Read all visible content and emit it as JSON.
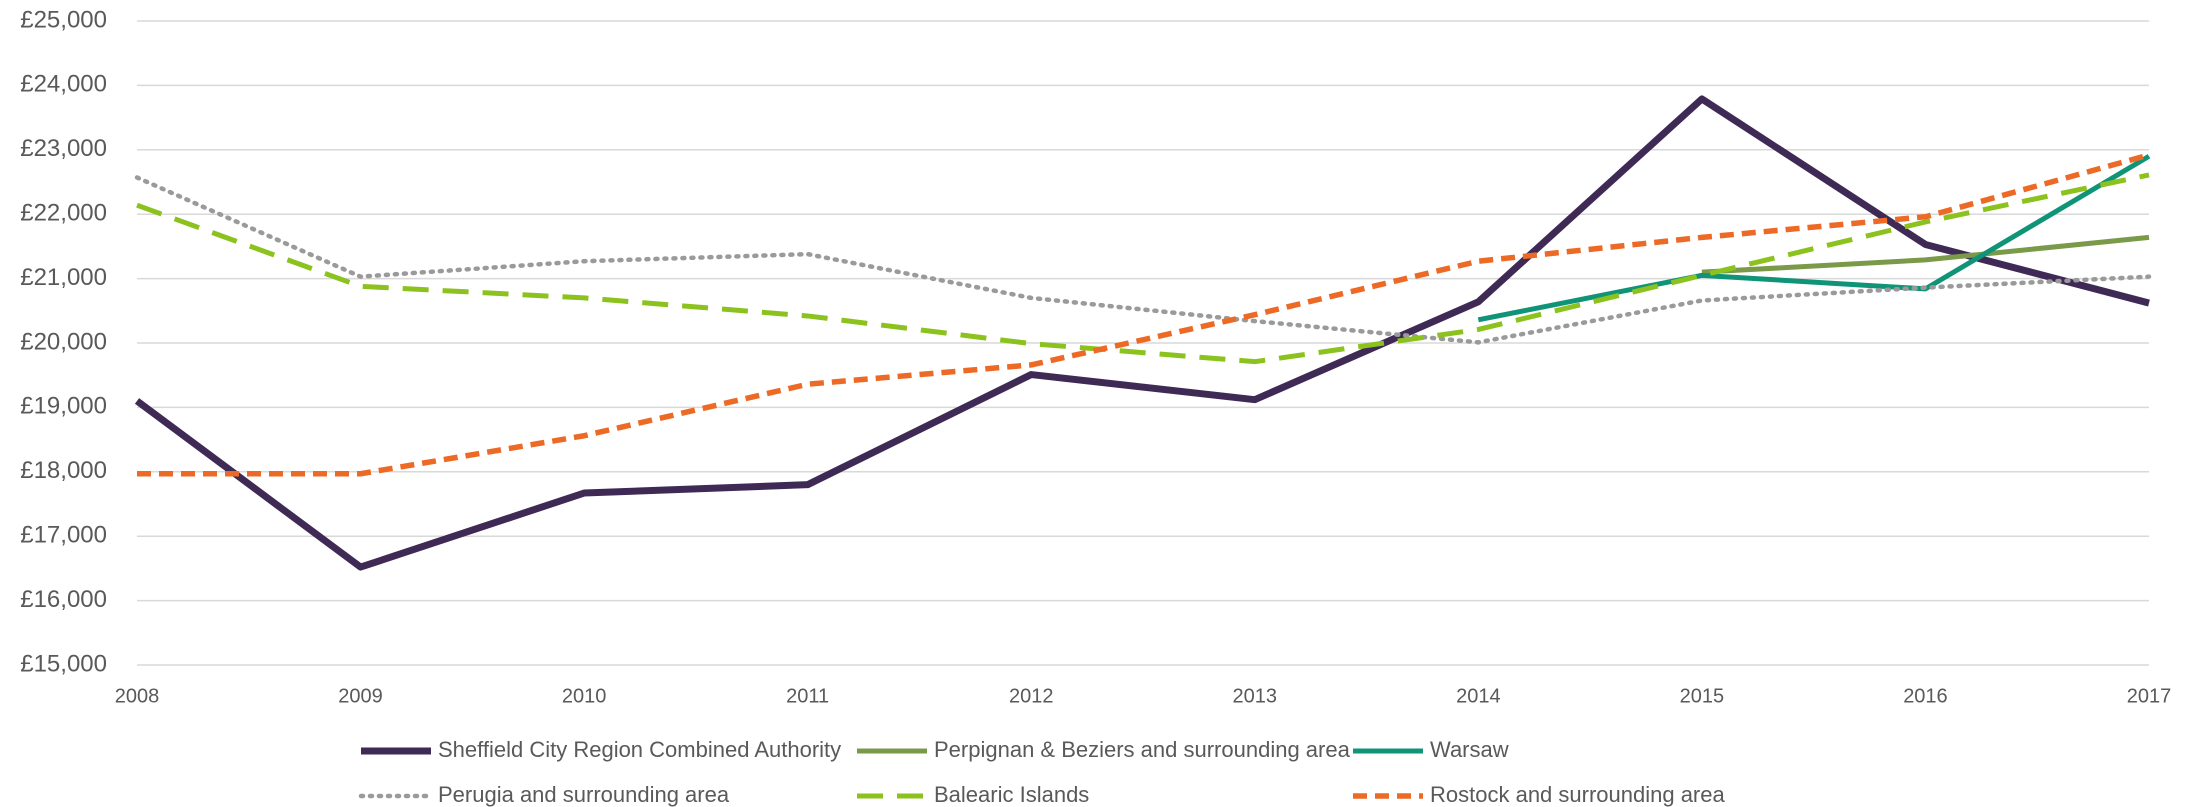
{
  "chart_data": {
    "type": "line",
    "categories": [
      "2008",
      "2009",
      "2010",
      "2011",
      "2012",
      "2013",
      "2014",
      "2015",
      "2016",
      "2017"
    ],
    "series": [
      {
        "name": "Sheffield City Region Combined Authority",
        "color": "#3f2a56",
        "dash": "solid",
        "values": [
          19100,
          16520,
          17670,
          17800,
          19510,
          19120,
          20640,
          23790,
          21530,
          20620
        ]
      },
      {
        "name": "Perpignan & Beziers and surrounding area",
        "color": "#7a9a4a",
        "dash": "solid",
        "values": [
          null,
          null,
          null,
          null,
          null,
          null,
          null,
          21100,
          21290,
          21640
        ]
      },
      {
        "name": "Warsaw",
        "color": "#0f9477",
        "dash": "solid",
        "values": [
          null,
          null,
          null,
          null,
          null,
          null,
          20360,
          21050,
          20840,
          22900
        ]
      },
      {
        "name": "Perugia and surrounding area",
        "color": "#9a9a9a",
        "dash": "dotted",
        "values": [
          22570,
          21030,
          21270,
          21380,
          20700,
          20340,
          20010,
          20660,
          20860,
          21030
        ]
      },
      {
        "name": "Balearic Islands",
        "color": "#8cc21e",
        "dash": "dashed",
        "values": [
          22140,
          20880,
          20700,
          20420,
          19990,
          19710,
          20210,
          21050,
          21880,
          22610
        ]
      },
      {
        "name": "Rostock and surrounding area",
        "color": "#ec6a26",
        "dash": "short-dashed",
        "values": [
          17970,
          17970,
          18560,
          19360,
          19660,
          20440,
          21270,
          21640,
          21960,
          22920
        ]
      }
    ],
    "ylim": [
      15000,
      25000
    ],
    "yticks": [
      {
        "value": 15000,
        "label": "£15,000"
      },
      {
        "value": 16000,
        "label": "£16,000"
      },
      {
        "value": 17000,
        "label": "£17,000"
      },
      {
        "value": 18000,
        "label": "£18,000"
      },
      {
        "value": 19000,
        "label": "£19,000"
      },
      {
        "value": 20000,
        "label": "£20,000"
      },
      {
        "value": 21000,
        "label": "£21,000"
      },
      {
        "value": 22000,
        "label": "£22,000"
      },
      {
        "value": 23000,
        "label": "£23,000"
      },
      {
        "value": 24000,
        "label": "£24,000"
      },
      {
        "value": 25000,
        "label": "£25,000"
      }
    ],
    "grid": true,
    "legend": "bottom"
  }
}
